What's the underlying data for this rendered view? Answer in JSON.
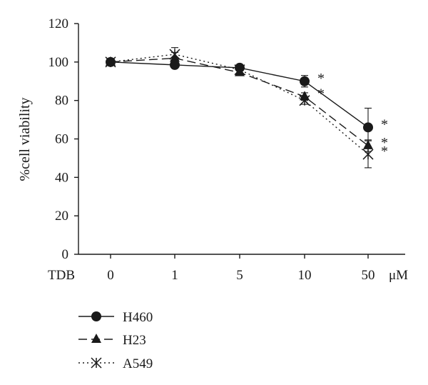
{
  "chart_data": {
    "type": "line",
    "ylabel": "%cell viability",
    "x_axis_prefix": "TDB",
    "x_unit": "μM",
    "categories": [
      "0",
      "1",
      "5",
      "10",
      "50"
    ],
    "ylim": [
      0,
      120
    ],
    "yticks": [
      "0",
      "20",
      "40",
      "60",
      "80",
      "100",
      "120"
    ],
    "grid": false,
    "legend_position": "bottom-left",
    "series": [
      {
        "name": "H460",
        "values": [
          100,
          98.5,
          97,
          90,
          66
        ],
        "errors": [
          1.5,
          1.5,
          1.5,
          3,
          10
        ],
        "marker": "circle",
        "line": "solid"
      },
      {
        "name": "H23",
        "values": [
          100,
          102,
          94.5,
          82,
          56.5
        ],
        "errors": [
          1.5,
          3,
          1.5,
          2,
          3
        ],
        "marker": "triangle",
        "line": "dashed"
      },
      {
        "name": "A549",
        "values": [
          100,
          104,
          96,
          80,
          52
        ],
        "errors": [
          1.5,
          3.5,
          1.5,
          2,
          7
        ],
        "marker": "asterisk",
        "line": "dotted"
      }
    ],
    "annotations": [
      {
        "text": "*",
        "series": "H460",
        "category": "10"
      },
      {
        "text": "*",
        "series": "H460",
        "category": "50"
      },
      {
        "text": "*",
        "series": "H23",
        "category": "10"
      },
      {
        "text": "*",
        "series": "H23",
        "category": "50"
      },
      {
        "text": "*",
        "series": "A549",
        "category": "50"
      }
    ]
  }
}
